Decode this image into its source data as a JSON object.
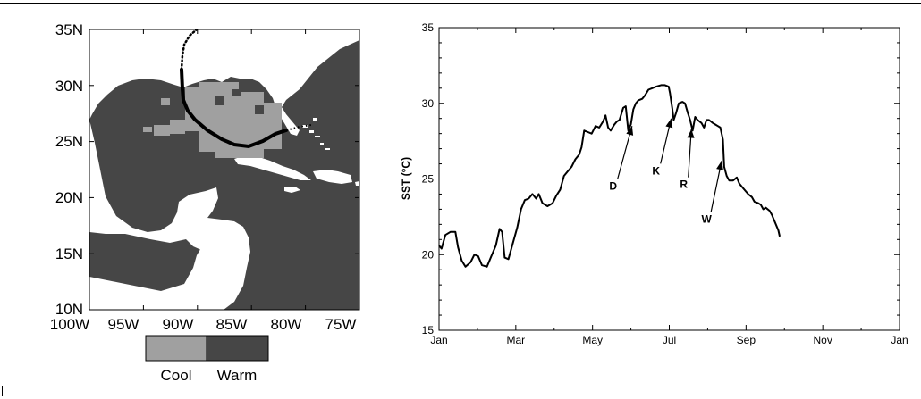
{
  "map": {
    "lat_labels": [
      "35N",
      "30N",
      "25N",
      "20N",
      "15N",
      "10N"
    ],
    "lon_labels": [
      "100W",
      "95W",
      "90W",
      "85W",
      "80W",
      "75W"
    ],
    "legend": [
      {
        "label": "Cool",
        "color": "#a0a0a0"
      },
      {
        "label": "Warm",
        "color": "#464646"
      }
    ],
    "colors": {
      "land": "#ffffff",
      "warm_sea": "#464646",
      "cool_sea": "#a0a0a0",
      "track": "#000000"
    }
  },
  "chart_data": {
    "type": "line",
    "title": "",
    "xlabel": "",
    "ylabel": "SST (°C)",
    "x_tick_labels": [
      "Jan",
      "Mar",
      "May",
      "Jul",
      "Sep",
      "Nov",
      "Jan"
    ],
    "y_ticks": [
      15,
      20,
      25,
      30,
      35
    ],
    "ylim": [
      15,
      35
    ],
    "xlim_days": [
      0,
      365
    ],
    "grid": false,
    "series": [
      {
        "color": "#000000",
        "points": [
          [
            0,
            20.6
          ],
          [
            2,
            20.4
          ],
          [
            5,
            21.3
          ],
          [
            9,
            21.5
          ],
          [
            13,
            21.5
          ],
          [
            15,
            20.5
          ],
          [
            18,
            19.6
          ],
          [
            21,
            19.2
          ],
          [
            25,
            19.5
          ],
          [
            28,
            20.0
          ],
          [
            31,
            19.9
          ],
          [
            34,
            19.3
          ],
          [
            38,
            19.2
          ],
          [
            41,
            19.8
          ],
          [
            45,
            20.6
          ],
          [
            48,
            21.7
          ],
          [
            50,
            21.5
          ],
          [
            52,
            19.8
          ],
          [
            55,
            19.7
          ],
          [
            58,
            20.6
          ],
          [
            62,
            21.8
          ],
          [
            65,
            23.0
          ],
          [
            68,
            23.6
          ],
          [
            71,
            23.7
          ],
          [
            74,
            24.0
          ],
          [
            77,
            23.7
          ],
          [
            79,
            24.0
          ],
          [
            82,
            23.4
          ],
          [
            86,
            23.2
          ],
          [
            90,
            23.4
          ],
          [
            93,
            23.9
          ],
          [
            96,
            24.3
          ],
          [
            99,
            25.2
          ],
          [
            102,
            25.5
          ],
          [
            105,
            25.8
          ],
          [
            108,
            26.3
          ],
          [
            111,
            26.6
          ],
          [
            113,
            27.1
          ],
          [
            115,
            28.2
          ],
          [
            118,
            28.1
          ],
          [
            121,
            28.0
          ],
          [
            124,
            28.5
          ],
          [
            127,
            28.4
          ],
          [
            130,
            28.8
          ],
          [
            132,
            29.2
          ],
          [
            134,
            28.4
          ],
          [
            136,
            28.2
          ],
          [
            139,
            28.6
          ],
          [
            141,
            28.8
          ],
          [
            143,
            28.9
          ],
          [
            146,
            29.7
          ],
          [
            148,
            29.8
          ],
          [
            150,
            28.2
          ],
          [
            152,
            28.6
          ],
          [
            154,
            29.6
          ],
          [
            156,
            30.0
          ],
          [
            158,
            30.2
          ],
          [
            161,
            30.3
          ],
          [
            163,
            30.5
          ],
          [
            166,
            30.9
          ],
          [
            169,
            31.0
          ],
          [
            172,
            31.1
          ],
          [
            176,
            31.2
          ],
          [
            179,
            31.2
          ],
          [
            182,
            31.1
          ],
          [
            183,
            30.7
          ],
          [
            185,
            29.6
          ],
          [
            186,
            28.9
          ],
          [
            188,
            29.4
          ],
          [
            190,
            30.0
          ],
          [
            193,
            30.1
          ],
          [
            195,
            30.0
          ],
          [
            197,
            29.4
          ],
          [
            199,
            28.9
          ],
          [
            201,
            28.2
          ],
          [
            203,
            29.1
          ],
          [
            205,
            28.9
          ],
          [
            208,
            28.7
          ],
          [
            210,
            28.4
          ],
          [
            212,
            28.9
          ],
          [
            214,
            28.9
          ],
          [
            217,
            28.7
          ],
          [
            219,
            28.6
          ],
          [
            221,
            28.5
          ],
          [
            223,
            28.4
          ],
          [
            225,
            27.6
          ],
          [
            226,
            25.8
          ],
          [
            228,
            25.2
          ],
          [
            230,
            24.9
          ],
          [
            233,
            24.9
          ],
          [
            236,
            25.1
          ],
          [
            238,
            24.7
          ],
          [
            241,
            24.4
          ],
          [
            243,
            24.2
          ],
          [
            245,
            24.0
          ],
          [
            248,
            23.8
          ],
          [
            250,
            23.5
          ],
          [
            253,
            23.4
          ],
          [
            255,
            23.3
          ],
          [
            257,
            23.0
          ],
          [
            259,
            23.1
          ],
          [
            262,
            22.9
          ],
          [
            264,
            22.6
          ],
          [
            267,
            22.0
          ],
          [
            269,
            21.6
          ],
          [
            270,
            21.2
          ]
        ]
      }
    ],
    "annotations": [
      {
        "text": "D",
        "day": 153,
        "value": 28.5,
        "label_day": 138,
        "label_value": 24.3
      },
      {
        "text": "K",
        "day": 184,
        "value": 29.0,
        "label_day": 172,
        "label_value": 25.3
      },
      {
        "text": "R",
        "day": 200,
        "value": 28.3,
        "label_day": 194,
        "label_value": 24.4
      },
      {
        "text": "W",
        "day": 224,
        "value": 26.2,
        "label_day": 212,
        "label_value": 22.1
      }
    ]
  }
}
